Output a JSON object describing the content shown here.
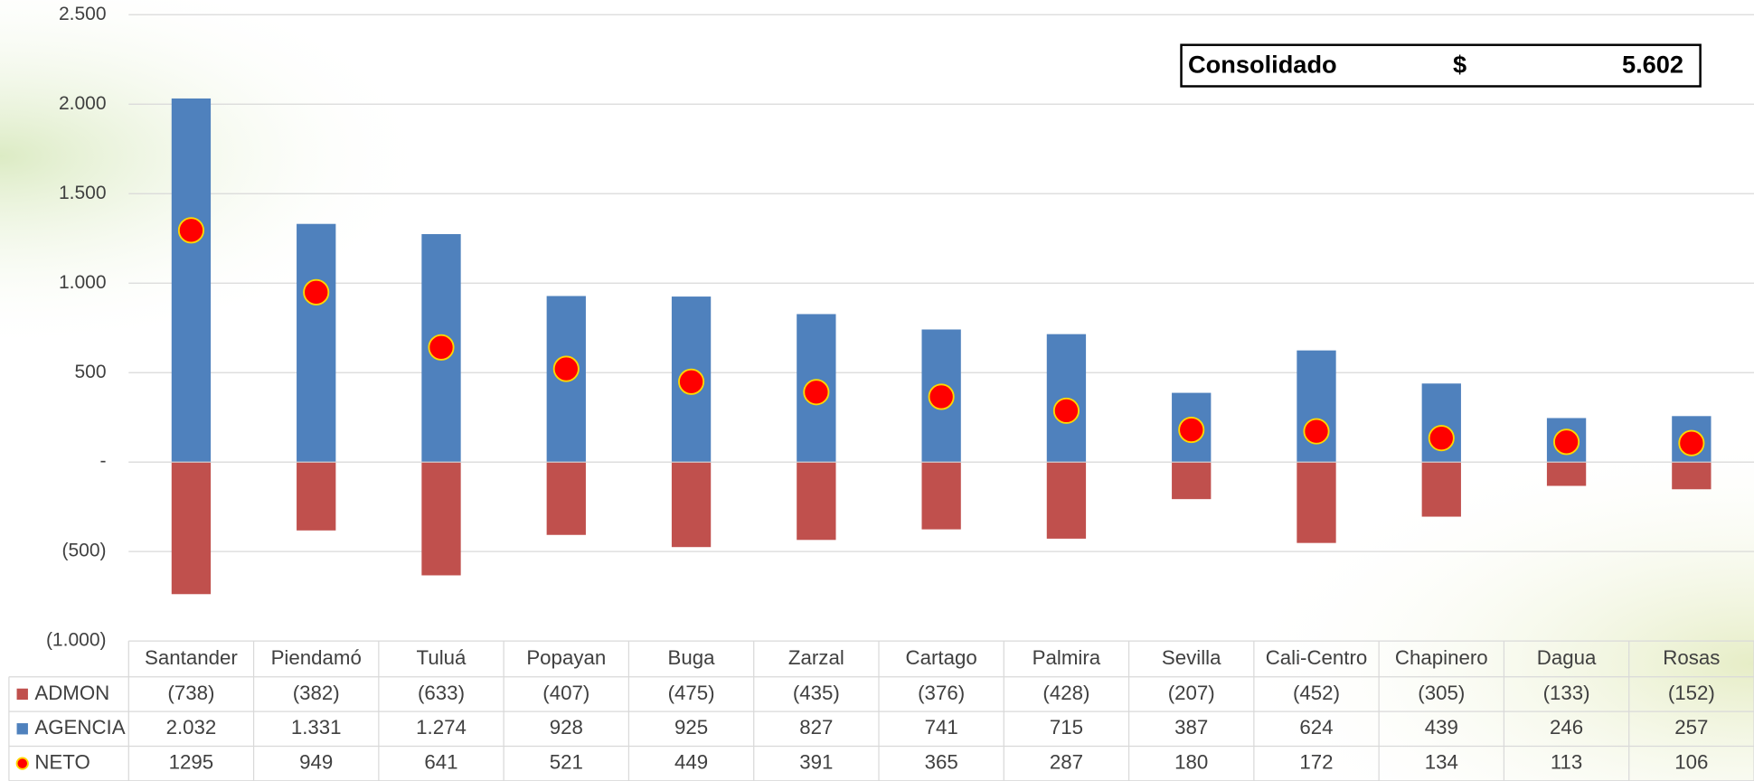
{
  "chart_data": {
    "type": "bar",
    "stacked": true,
    "categories": [
      "Santander",
      "Piendamó",
      "Tuluá",
      "Popayan",
      "Buga",
      "Zarzal",
      "Cartago",
      "Palmira",
      "Sevilla",
      "Cali-Centro",
      "Chapinero",
      "Dagua",
      "Rosas"
    ],
    "series": [
      {
        "name": "ADMON",
        "color": "#c0504d",
        "kind": "bar",
        "values": [
          -738,
          -382,
          -633,
          -407,
          -475,
          -435,
          -376,
          -428,
          -207,
          -452,
          -305,
          -133,
          -152
        ],
        "value_labels": [
          "(738)",
          "(382)",
          "(633)",
          "(407)",
          "(475)",
          "(435)",
          "(376)",
          "(428)",
          "(207)",
          "(452)",
          "(305)",
          "(133)",
          "(152)"
        ]
      },
      {
        "name": "AGENCIA",
        "color": "#4f81bd",
        "kind": "bar",
        "values": [
          2032,
          1331,
          1274,
          928,
          925,
          827,
          741,
          715,
          387,
          624,
          439,
          246,
          257
        ],
        "value_labels": [
          "2.032",
          "1.331",
          "1.274",
          "928",
          "925",
          "827",
          "741",
          "715",
          "387",
          "624",
          "439",
          "246",
          "257"
        ]
      },
      {
        "name": "NETO",
        "color": "#ff0000",
        "kind": "point",
        "values": [
          1295,
          949,
          641,
          521,
          449,
          391,
          365,
          287,
          180,
          172,
          134,
          113,
          106
        ]
      }
    ],
    "ylim": [
      -1000,
      2500
    ],
    "yticks": [
      {
        "value": 2500,
        "label": "2.500"
      },
      {
        "value": 2000,
        "label": "2.000"
      },
      {
        "value": 1500,
        "label": "1.500"
      },
      {
        "value": 1000,
        "label": "1.000"
      },
      500,
      {
        "value": 0,
        "label": "-"
      },
      {
        "value": -500,
        "label": "(500)"
      },
      {
        "value": -1000,
        "label": "(1.000)"
      }
    ],
    "grid": true,
    "summary": {
      "label": "Consolidado",
      "currency": "$",
      "amount": "5.602"
    }
  }
}
